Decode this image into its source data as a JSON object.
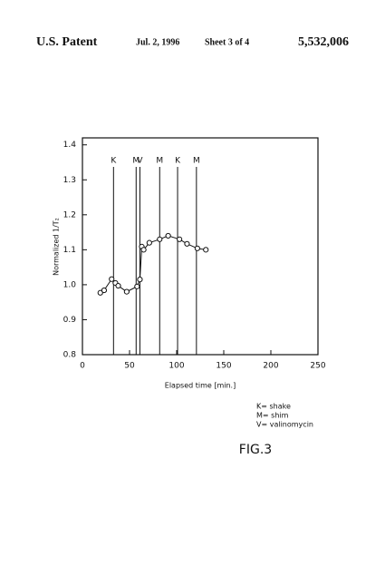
{
  "header": {
    "left": "U.S. Patent",
    "date": "Jul. 2, 1996",
    "sheet": "Sheet 3 of 4",
    "number": "5,532,006"
  },
  "chart_data": {
    "type": "line",
    "x_label": "Elapsed time   [min.]",
    "y_label": "Normalized  1/T₂",
    "x": [
      19,
      23,
      31,
      35,
      38,
      47,
      58,
      61,
      63,
      65,
      71,
      82,
      91,
      103,
      111,
      122,
      131
    ],
    "series": [
      {
        "color": "#111111",
        "values": [
          0.977,
          0.984,
          1.016,
          1.005,
          0.997,
          0.98,
          0.995,
          1.015,
          1.109,
          1.1,
          1.12,
          1.13,
          1.14,
          1.13,
          1.117,
          1.104,
          1.1
        ]
      }
    ],
    "events": [
      {
        "x": 33,
        "label": "K"
      },
      {
        "x": 57,
        "label": "M"
      },
      {
        "x": 61,
        "label": "V"
      },
      {
        "x": 82,
        "label": "M"
      },
      {
        "x": 101,
        "label": "K"
      },
      {
        "x": 121,
        "label": "M"
      }
    ],
    "xlim": [
      0,
      250
    ],
    "ylim": [
      0.8,
      1.42
    ],
    "xticks": [
      0,
      50,
      100,
      150,
      200,
      250
    ],
    "yticks": [
      0.8,
      0.9,
      {
        "value": 1,
        "label": "1.0"
      },
      1.1,
      1.2,
      1.3,
      1.4
    ],
    "key": [
      "K= shake",
      "M= shim",
      "V= valinomycin"
    ],
    "caption": "FIG.3"
  }
}
